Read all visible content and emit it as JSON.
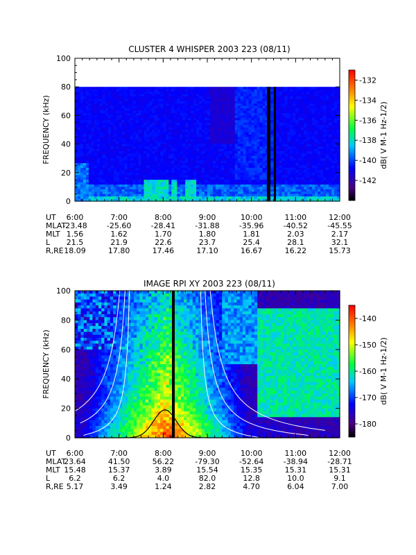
{
  "chart_data": [
    {
      "type": "heatmap",
      "title": "CLUSTER 4 WHISPER 2003 223 (08/11)",
      "ylabel": "FREQUENCY (kHz)",
      "ylim": [
        0,
        100
      ],
      "y_ticks": [
        "0",
        "20",
        "40",
        "60",
        "80",
        "100"
      ],
      "x_ticks": [
        "6:00",
        "7:00",
        "8:00",
        "9:00",
        "10:00",
        "11:00",
        "12:00"
      ],
      "data_top_khz": 80,
      "colorbar": {
        "label": "dB( V M-1 Hz-1/2)",
        "ticks": [
          "-132",
          "-134",
          "-136",
          "-138",
          "-140",
          "-142"
        ],
        "range": [
          -144,
          -131
        ]
      },
      "ephemeris": {
        "rows": [
          {
            "label": "UT",
            "values": [
              "6:00",
              "7:00",
              "8:00",
              "9:00",
              "10:00",
              "11:00",
              "12:00"
            ]
          },
          {
            "label": "MLAT",
            "values": [
              "-23.48",
              "-25.60",
              "-28.41",
              "-31.88",
              "-35.96",
              "-40.52",
              "-45.55"
            ]
          },
          {
            "label": "MLT",
            "values": [
              "1.56",
              "1.62",
              "1.70",
              "1.80",
              "1.81",
              "2.03",
              "2.17"
            ]
          },
          {
            "label": "L",
            "values": [
              "21.5",
              "21.9",
              "22.6",
              "23.7",
              "25.4",
              "28.1",
              "32.1"
            ]
          },
          {
            "label": "R,RE",
            "values": [
              "18.09",
              "17.80",
              "17.46",
              "17.10",
              "16.67",
              "16.22",
              "15.73"
            ]
          }
        ]
      }
    },
    {
      "type": "heatmap",
      "title": "IMAGE RPI XY 2003 223 (08/11)",
      "ylabel": "FREQUENCY (kHz)",
      "ylim": [
        0,
        100
      ],
      "y_ticks": [
        "0",
        "20",
        "40",
        "60",
        "80",
        "100"
      ],
      "x_ticks": [
        "6:00",
        "7:00",
        "8:00",
        "9:00",
        "10:00",
        "11:00",
        "12:00"
      ],
      "colorbar": {
        "label": "dB( V M-1 Hz-1/2)",
        "ticks": [
          "-140",
          "-150",
          "-160",
          "-170",
          "-180"
        ],
        "range": [
          -185,
          -135
        ]
      },
      "ephemeris": {
        "rows": [
          {
            "label": "UT",
            "values": [
              "6:00",
              "7:00",
              "8:00",
              "9:00",
              "10:00",
              "11:00",
              "12:00"
            ]
          },
          {
            "label": "MLAT",
            "values": [
              "23.64",
              "41.50",
              "56.22",
              "-79.30",
              "-52.64",
              "-38.94",
              "-28.71"
            ]
          },
          {
            "label": "MLT",
            "values": [
              "15.48",
              "15.37",
              "3.89",
              "15.54",
              "15.35",
              "15.31",
              "15.31"
            ]
          },
          {
            "label": "L",
            "values": [
              "6.2",
              "6.2",
              "4.0",
              "82.0",
              "12.8",
              "10.0",
              "9.1"
            ]
          },
          {
            "label": "R,RE",
            "values": [
              "5.17",
              "3.49",
              "1.24",
              "2.82",
              "4.70",
              "6.04",
              "7.00"
            ]
          }
        ]
      }
    }
  ]
}
